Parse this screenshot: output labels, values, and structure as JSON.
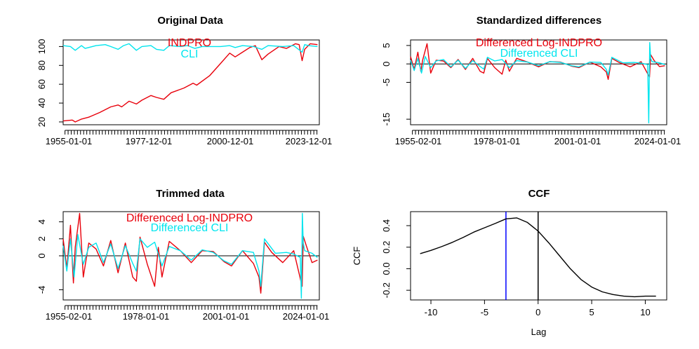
{
  "chart_data": [
    {
      "type": "line",
      "title": "Original Data",
      "xlabel": "",
      "ylabel": "",
      "x_tick_labels": [
        "1955-01-01",
        "1977-12-01",
        "2000-12-01",
        "2023-12-01"
      ],
      "y_ticks": [
        20,
        40,
        60,
        80,
        100
      ],
      "ylim": [
        17,
        107
      ],
      "xlim": [
        1955.0,
        2025.0
      ],
      "grid": false,
      "legend_position": "top-center",
      "series": [
        {
          "name": "INDPRO",
          "color": "#e8000b",
          "x": [
            1955.0,
            1957.5,
            1958.3,
            1960.0,
            1962.0,
            1965.0,
            1968.0,
            1970.0,
            1971.0,
            1973.0,
            1975.0,
            1976.5,
            1979.0,
            1980.5,
            1982.5,
            1984.5,
            1988.0,
            1990.5,
            1991.5,
            1995.0,
            1998.0,
            2000.5,
            2002.0,
            2004.0,
            2006.0,
            2007.5,
            2009.3,
            2011.0,
            2014.0,
            2016.0,
            2018.5,
            2019.5,
            2020.3,
            2021.0,
            2022.5,
            2024.5
          ],
          "y": [
            21,
            22,
            20,
            23,
            25,
            30,
            36,
            38,
            36,
            42,
            39,
            43,
            48,
            46,
            44,
            51,
            56,
            61,
            59,
            69,
            82,
            93,
            89,
            94,
            99,
            101,
            86,
            92,
            100,
            98,
            103,
            102,
            85,
            97,
            103,
            102
          ]
        },
        {
          "name": "CLI",
          "color": "#00e5ee",
          "x": [
            1955.0,
            1957.0,
            1958.3,
            1960.0,
            1961.0,
            1964.0,
            1966.5,
            1968.0,
            1970.0,
            1971.5,
            1973.0,
            1975.0,
            1976.5,
            1979.0,
            1980.5,
            1982.5,
            1984.0,
            1987.0,
            1989.0,
            1991.0,
            1993.0,
            1995.0,
            1998.0,
            2000.5,
            2002.0,
            2004.0,
            2007.0,
            2008.5,
            2009.3,
            2011.0,
            2015.0,
            2018.0,
            2020.3,
            2021.0,
            2022.0,
            2024.5
          ],
          "y": [
            101,
            100,
            96,
            101,
            98,
            101,
            102,
            100,
            97,
            101,
            103,
            96,
            100,
            101,
            97,
            96,
            101,
            100,
            101,
            98,
            100,
            100,
            100,
            101,
            99,
            101,
            100,
            98,
            97,
            101,
            100,
            101,
            94,
            102,
            101,
            100
          ]
        }
      ]
    },
    {
      "type": "line",
      "title": "Standardized differences",
      "xlabel": "",
      "ylabel": "",
      "x_tick_labels": [
        "1955-02-01",
        "1978-01-01",
        "2001-01-01",
        "2024-01-01"
      ],
      "y_ticks": [
        5,
        0,
        -5,
        -15
      ],
      "ylim": [
        -16.5,
        6.5
      ],
      "xlim": [
        1955.0,
        2025.0
      ],
      "grid": false,
      "legend_position": "top-center",
      "series": [
        {
          "name": "Differenced Log-INDPRO",
          "color": "#e8000b",
          "x": [
            1955.0,
            1956.0,
            1957.0,
            1957.8,
            1958.3,
            1959.5,
            1960.5,
            1962.0,
            1964.0,
            1966.0,
            1968.0,
            1970.0,
            1972.0,
            1974.0,
            1975.0,
            1976.0,
            1978.0,
            1980.0,
            1981.0,
            1982.0,
            1984.0,
            1987.0,
            1990.0,
            1993.0,
            1996.0,
            1999.0,
            2001.0,
            2004.0,
            2007.0,
            2008.5,
            2009.0,
            2010.0,
            2012.0,
            2015.0,
            2018.0,
            2020.3,
            2020.6,
            2021.5,
            2023.0,
            2024.5
          ],
          "y": [
            2.0,
            -1.5,
            3.2,
            -2.0,
            1.0,
            5.5,
            -2.5,
            1.0,
            0.8,
            -1.0,
            1.2,
            -1.5,
            1.5,
            -2.0,
            -2.5,
            1.5,
            -1.0,
            -2.8,
            1.0,
            -2.0,
            1.5,
            0.5,
            -0.8,
            0.6,
            0.5,
            -0.6,
            -1.0,
            0.5,
            -0.8,
            -2.2,
            -4.2,
            1.5,
            0.4,
            -0.8,
            0.6,
            -3.6,
            2.5,
            1.0,
            -0.7,
            -0.5
          ]
        },
        {
          "name": "Differenced CLI",
          "color": "#00e5ee",
          "x": [
            1955.0,
            1956.0,
            1957.0,
            1958.0,
            1959.0,
            1960.5,
            1962.0,
            1964.0,
            1966.0,
            1968.0,
            1970.0,
            1972.0,
            1974.0,
            1975.0,
            1976.0,
            1978.0,
            1980.0,
            1982.0,
            1984.0,
            1987.0,
            1990.0,
            1993.0,
            1996.0,
            1999.0,
            2001.0,
            2004.0,
            2007.0,
            2008.5,
            2009.0,
            2010.0,
            2013.0,
            2016.0,
            2018.0,
            2019.8,
            2020.1,
            2020.35,
            2020.6,
            2021.0,
            2023.0,
            2024.5
          ],
          "y": [
            1.0,
            -1.8,
            1.5,
            -2.5,
            2.0,
            -1.0,
            0.8,
            1.2,
            -0.8,
            1.0,
            -1.2,
            0.9,
            -0.7,
            -1.4,
            1.8,
            0.8,
            1.2,
            -1.0,
            0.9,
            0.5,
            -0.5,
            0.6,
            0.4,
            -0.5,
            -0.8,
            0.5,
            0.4,
            -1.5,
            -3.0,
            1.8,
            0.3,
            0.4,
            0.2,
            -0.2,
            -16.0,
            5.8,
            1.5,
            0.6,
            0.3,
            -0.2
          ]
        }
      ]
    },
    {
      "type": "line",
      "title": "Trimmed data",
      "xlabel": "",
      "ylabel": "",
      "x_tick_labels": [
        "1955-02-01",
        "1978-01-01",
        "2001-01-01",
        "2024-01-01"
      ],
      "y_ticks": [
        4,
        2,
        0,
        -4
      ],
      "ylim": [
        -5.2,
        5.2
      ],
      "xlim": [
        1955.0,
        2025.0
      ],
      "grid": false,
      "legend_position": "top-center",
      "series": [
        {
          "name": "Differenced Log-INDPRO",
          "color": "#e8000b",
          "x": [
            1955.0,
            1956.0,
            1957.0,
            1957.8,
            1958.3,
            1959.5,
            1960.5,
            1962.0,
            1964.0,
            1966.0,
            1968.0,
            1970.0,
            1972.0,
            1974.0,
            1975.0,
            1976.0,
            1978.0,
            1980.0,
            1981.0,
            1982.0,
            1984.0,
            1987.0,
            1990.0,
            1993.0,
            1996.0,
            1999.0,
            2001.0,
            2004.0,
            2007.0,
            2008.5,
            2009.0,
            2010.0,
            2012.0,
            2015.0,
            2018.0,
            2020.3,
            2020.6,
            2021.5,
            2023.0,
            2024.5
          ],
          "y": [
            2.0,
            -1.5,
            3.6,
            -3.2,
            1.0,
            5.0,
            -2.5,
            1.5,
            0.8,
            -1.2,
            1.8,
            -2.0,
            1.5,
            -2.5,
            -3.0,
            2.2,
            -1.0,
            -3.6,
            1.0,
            -2.5,
            1.7,
            0.6,
            -0.8,
            0.6,
            0.5,
            -0.7,
            -1.2,
            0.6,
            -0.9,
            -2.5,
            -4.4,
            1.6,
            0.4,
            -0.8,
            0.6,
            -3.6,
            2.3,
            1.1,
            -0.8,
            -0.5
          ]
        },
        {
          "name": "Differenced CLI",
          "color": "#00e5ee",
          "x": [
            1955.0,
            1956.0,
            1957.0,
            1958.0,
            1959.0,
            1960.5,
            1962.0,
            1964.0,
            1966.0,
            1968.0,
            1970.0,
            1972.0,
            1974.0,
            1975.0,
            1976.0,
            1978.0,
            1980.0,
            1982.0,
            1984.0,
            1987.0,
            1990.0,
            1993.0,
            1996.0,
            1999.0,
            2001.0,
            2004.0,
            2007.0,
            2008.5,
            2009.0,
            2010.0,
            2013.0,
            2016.0,
            2018.0,
            2019.8,
            2020.1,
            2020.35,
            2020.6,
            2021.0,
            2023.0,
            2024.5
          ],
          "y": [
            1.2,
            -1.8,
            2.0,
            -2.5,
            2.5,
            -1.0,
            1.0,
            1.5,
            -0.8,
            1.4,
            -1.5,
            1.2,
            -0.9,
            -1.8,
            2.0,
            1.0,
            1.6,
            -1.2,
            1.1,
            0.6,
            -0.5,
            0.7,
            0.4,
            -0.6,
            -1.0,
            0.6,
            0.4,
            -1.8,
            -3.6,
            2.0,
            0.3,
            0.4,
            0.2,
            -0.2,
            -5.0,
            5.0,
            1.5,
            0.6,
            0.3,
            -0.2
          ]
        }
      ]
    },
    {
      "type": "line",
      "title": "CCF",
      "xlabel": "Lag",
      "ylabel": "CCF",
      "x_ticks": [
        -10,
        -5,
        0,
        5,
        10
      ],
      "y_ticks": [
        -0.2,
        0.0,
        0.2,
        0.4
      ],
      "xlim": [
        -11.9,
        12.0
      ],
      "ylim": [
        -0.29,
        0.53
      ],
      "grid": false,
      "vertical_lines": [
        {
          "x": -3,
          "color": "#0000ff"
        },
        {
          "x": 0,
          "color": "#000000"
        }
      ],
      "series": [
        {
          "name": "",
          "color": "#000000",
          "x": [
            -11,
            -10,
            -9,
            -8,
            -7,
            -6,
            -5,
            -4,
            -3,
            -2,
            -1,
            0,
            1,
            2,
            3,
            4,
            5,
            6,
            7,
            8,
            9,
            10,
            11
          ],
          "y": [
            0.14,
            0.17,
            0.205,
            0.245,
            0.29,
            0.34,
            0.38,
            0.42,
            0.463,
            0.472,
            0.43,
            0.35,
            0.24,
            0.12,
            0.0,
            -0.1,
            -0.17,
            -0.215,
            -0.24,
            -0.255,
            -0.26,
            -0.255,
            -0.255
          ]
        }
      ]
    }
  ]
}
